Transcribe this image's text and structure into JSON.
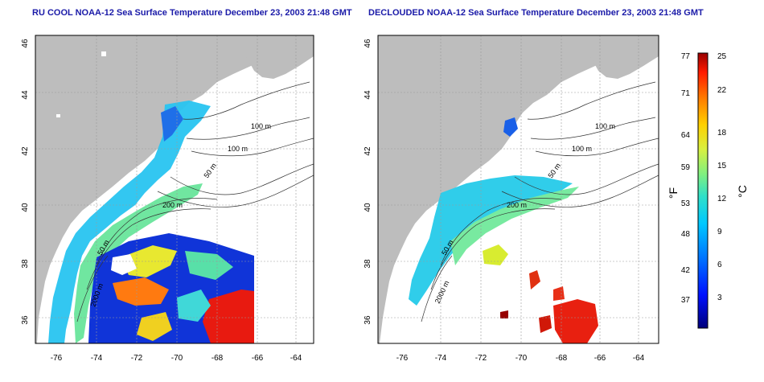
{
  "left_panel": {
    "title": "RU COOL NOAA-12 Sea Surface Temperature December 23, 2003 21:48 GMT",
    "lat_ticks": [
      "46",
      "44",
      "42",
      "40",
      "38",
      "36"
    ],
    "lon_ticks": [
      "-76",
      "-74",
      "-72",
      "-70",
      "-68",
      "-66",
      "-64"
    ],
    "contour_labels": [
      "100 m",
      "100 m",
      "50 m",
      "200 m",
      "50 m",
      "2000 m"
    ]
  },
  "right_panel": {
    "title": "DECLOUDED NOAA-12 Sea Surface Temperature December 23, 2003 21:48 GMT",
    "lat_ticks": [
      "46",
      "44",
      "42",
      "40",
      "38",
      "36"
    ],
    "lon_ticks": [
      "-76",
      "-74",
      "-72",
      "-70",
      "-68",
      "-66",
      "-64"
    ],
    "contour_labels": [
      "100 m",
      "100 m",
      "50 m",
      "200 m",
      "50 m",
      "2000 m"
    ]
  },
  "colorbar": {
    "fahrenheit_unit": "°F",
    "celsius_unit": "°C",
    "fahrenheit_ticks": [
      "77",
      "71",
      "64",
      "59",
      "53",
      "48",
      "42",
      "37"
    ],
    "celsius_ticks": [
      "25",
      "22",
      "18",
      "15",
      "12",
      "9",
      "6",
      "3"
    ],
    "colors": [
      "#000080",
      "#0000ff",
      "#0080ff",
      "#00d0ff",
      "#40e0c0",
      "#80f080",
      "#e0f040",
      "#ffd000",
      "#ff8000",
      "#ff2000",
      "#a00000"
    ]
  },
  "colors": {
    "land": "#bdbdbd",
    "ocean": "#ffffff",
    "title": "#1a1aa8",
    "grid": "#9a9a9a"
  }
}
